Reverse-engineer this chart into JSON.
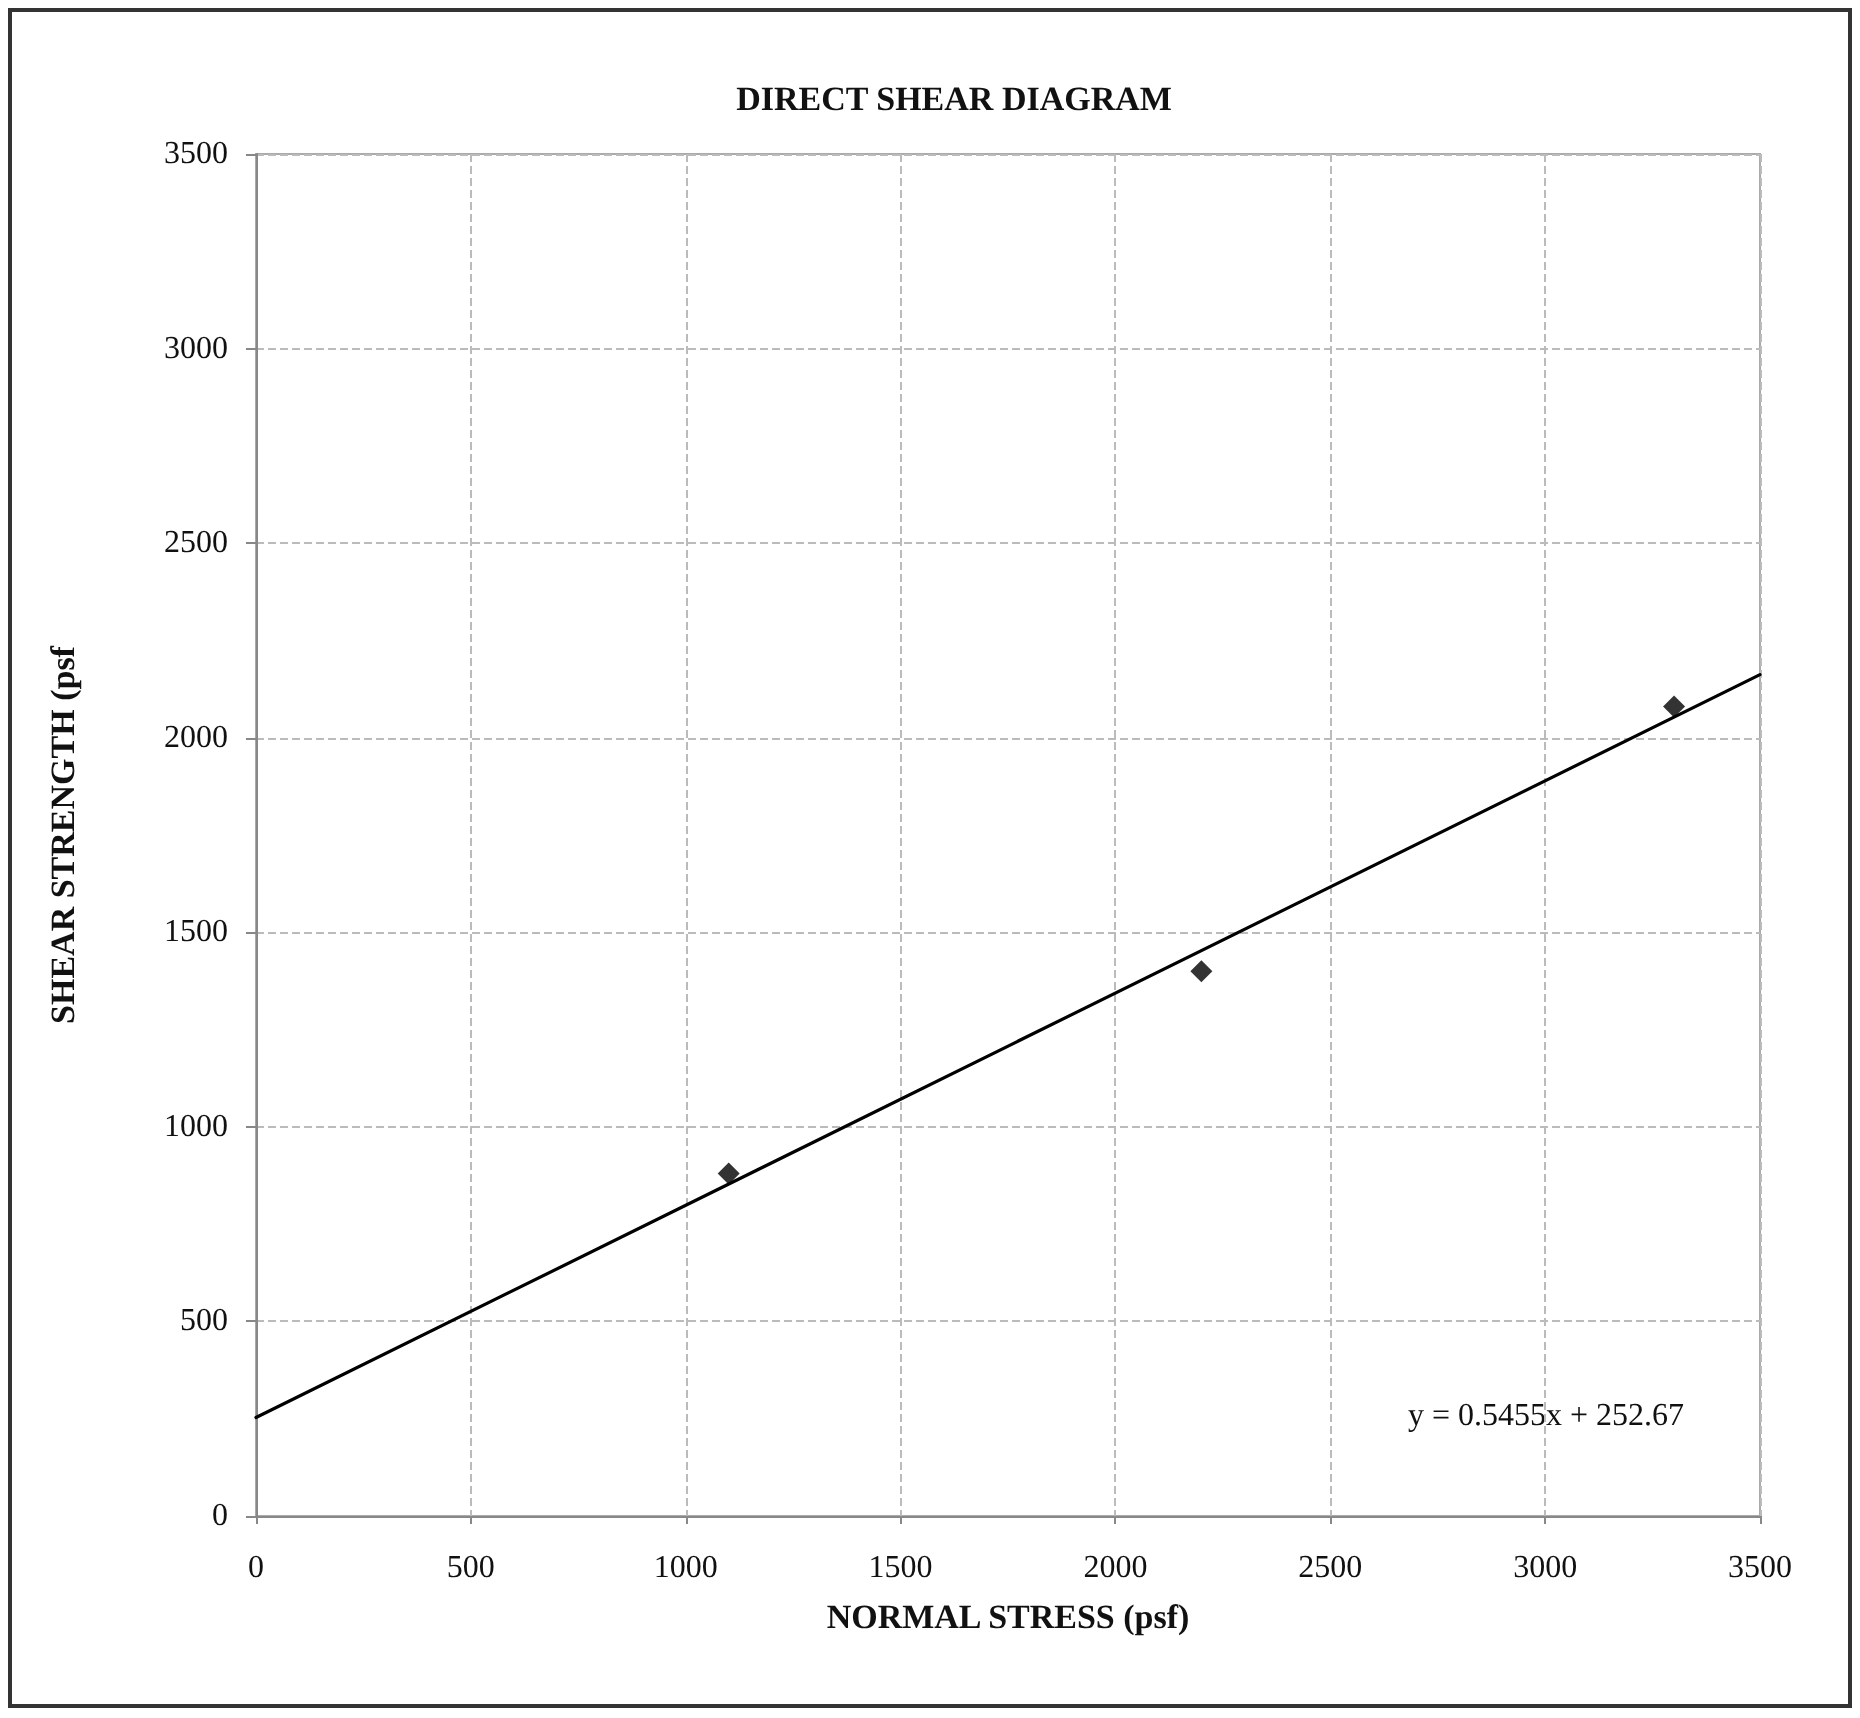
{
  "chart_data": {
    "type": "scatter",
    "title": "DIRECT SHEAR DIAGRAM",
    "xlabel": "NORMAL STRESS (psf)",
    "ylabel": "SHEAR STRENGTH (psf",
    "annotations": [
      "y = 0.5455x + 252.67"
    ],
    "x": [
      1100,
      2200,
      3300
    ],
    "series": [
      {
        "color": "#000000",
        "values": [
          880,
          1400,
          2080
        ]
      },
      {
        "type": "line",
        "x": [
          0,
          3500
        ],
        "values": [
          253,
          2162
        ],
        "color": "#000000",
        "line_style": "solid",
        "marker": "none"
      }
    ],
    "marker": "diamond",
    "xlim": [
      0,
      3500
    ],
    "ylim": [
      0,
      3500
    ],
    "xticks": [
      0,
      500,
      1000,
      1500,
      2000,
      2500,
      3000,
      3500
    ],
    "yticks": [
      0,
      500,
      1000,
      1500,
      2000,
      2500,
      3000,
      3500
    ],
    "grid": true
  }
}
